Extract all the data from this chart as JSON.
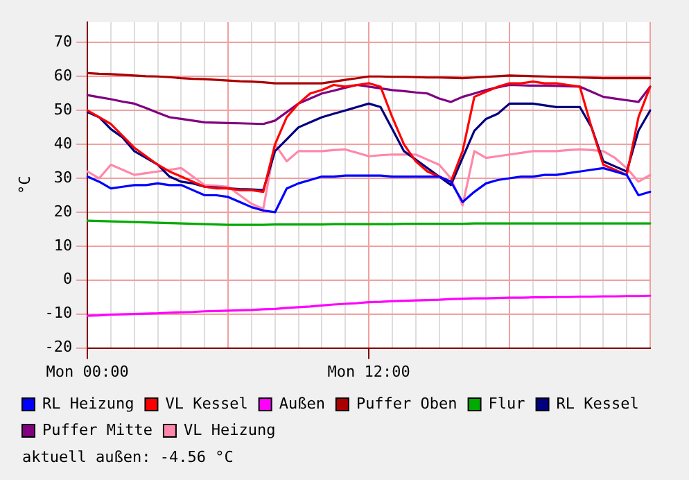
{
  "chart_data": {
    "type": "line",
    "ylabel": "°C",
    "annotations": [
      "aktuell außen: -4.56 °C"
    ],
    "categories": [
      "Mon 00:00",
      null,
      null,
      null,
      null,
      null,
      null,
      null,
      null,
      null,
      null,
      null,
      null,
      null,
      null,
      null,
      null,
      null,
      null,
      null,
      null,
      null,
      null,
      null,
      "Mon 12:00",
      null,
      null,
      null,
      null,
      null,
      null,
      null,
      null,
      null,
      null,
      null,
      null,
      null,
      null,
      null,
      null,
      null,
      null,
      null,
      null,
      null,
      null,
      null,
      null
    ],
    "ylim": [
      -20,
      76
    ],
    "yticks": [
      -20,
      -10,
      0,
      10,
      20,
      30,
      40,
      50,
      60,
      70
    ],
    "grid": true,
    "legend": "bottom",
    "marker": "none",
    "line_style": "solid",
    "series": [
      {
        "name": "RL Heizung",
        "color": "#0000ff",
        "values": [
          30.5,
          29,
          27,
          27.5,
          28,
          28,
          28.5,
          28,
          28,
          26.5,
          25,
          25,
          24.5,
          23,
          21.5,
          20.5,
          20,
          27,
          28.5,
          29.5,
          30.5,
          30.5,
          30.8,
          30.8,
          30.8,
          30.8,
          30.5,
          30.5,
          30.5,
          30.5,
          30.5,
          29,
          23,
          26,
          28.5,
          29.5,
          30,
          30.5,
          30.5,
          31,
          31,
          31.5,
          32,
          32.5,
          33,
          32,
          31,
          25,
          26
        ]
      },
      {
        "name": "VL Kessel",
        "color": "#ff0000",
        "values": [
          50,
          48,
          46,
          42.5,
          39,
          36.5,
          34,
          32,
          30.5,
          29,
          27.5,
          27,
          27,
          26.5,
          26.5,
          26,
          40,
          48,
          52,
          55,
          56,
          57.5,
          57,
          57.5,
          58,
          57,
          48,
          40,
          35,
          32,
          30.5,
          29,
          38,
          54,
          55.5,
          57,
          58,
          58,
          58.5,
          58,
          58,
          57.5,
          57,
          45,
          34,
          32.5,
          31,
          48,
          57
        ]
      },
      {
        "name": "Außen",
        "color": "#ff00ff",
        "values": [
          -10.5,
          -10.4,
          -10.2,
          -10.1,
          -10,
          -9.9,
          -9.8,
          -9.6,
          -9.5,
          -9.4,
          -9.2,
          -9.1,
          -9,
          -8.9,
          -8.8,
          -8.6,
          -8.5,
          -8.2,
          -8,
          -7.8,
          -7.5,
          -7.2,
          -7,
          -6.8,
          -6.5,
          -6.4,
          -6.2,
          -6.1,
          -6,
          -5.9,
          -5.8,
          -5.6,
          -5.5,
          -5.4,
          -5.4,
          -5.3,
          -5.2,
          -5.2,
          -5.1,
          -5.1,
          -5,
          -5,
          -4.9,
          -4.9,
          -4.8,
          -4.8,
          -4.7,
          -4.7,
          -4.6
        ]
      },
      {
        "name": "Puffer Oben",
        "color": "#aa0000",
        "values": [
          61,
          60.8,
          60.7,
          60.5,
          60.3,
          60.1,
          60,
          59.8,
          59.5,
          59.3,
          59.2,
          59,
          58.8,
          58.6,
          58.5,
          58.3,
          58,
          58,
          58,
          58,
          58,
          58.5,
          59,
          59.5,
          60,
          60,
          59.9,
          59.9,
          59.8,
          59.7,
          59.7,
          59.6,
          59.5,
          59.7,
          59.9,
          60.1,
          60.3,
          60.2,
          60.1,
          60,
          59.9,
          59.8,
          59.7,
          59.6,
          59.5,
          59.5,
          59.5,
          59.5,
          59.5
        ]
      },
      {
        "name": "Flur",
        "color": "#00aa00",
        "values": [
          17.5,
          17.4,
          17.3,
          17.2,
          17.1,
          17,
          16.9,
          16.8,
          16.7,
          16.6,
          16.5,
          16.4,
          16.3,
          16.3,
          16.3,
          16.3,
          16.4,
          16.4,
          16.4,
          16.4,
          16.4,
          16.5,
          16.5,
          16.5,
          16.5,
          16.5,
          16.5,
          16.6,
          16.6,
          16.6,
          16.6,
          16.6,
          16.6,
          16.7,
          16.7,
          16.7,
          16.7,
          16.7,
          16.7,
          16.7,
          16.7,
          16.7,
          16.7,
          16.7,
          16.7,
          16.7,
          16.7,
          16.7,
          16.7
        ]
      },
      {
        "name": "RL Kessel",
        "color": "#000080",
        "values": [
          49.5,
          48,
          44.5,
          42,
          38,
          36,
          34,
          30.5,
          29,
          28.5,
          27.5,
          27.3,
          27,
          26.8,
          26.7,
          26.5,
          38,
          41.5,
          45,
          46.5,
          48,
          49,
          50,
          51,
          52,
          51,
          44.5,
          38,
          35.5,
          33,
          30.5,
          28,
          36,
          44,
          47.5,
          49,
          52,
          52,
          52,
          51.5,
          51,
          51,
          51,
          45,
          35,
          33.5,
          32,
          44,
          50
        ]
      },
      {
        "name": "Puffer Mitte",
        "color": "#800080",
        "values": [
          54.5,
          53.9,
          53.3,
          52.6,
          52,
          50.7,
          49.3,
          48,
          47.5,
          47,
          46.5,
          46.4,
          46.3,
          46.2,
          46.1,
          46,
          47,
          49.5,
          52,
          53.5,
          55,
          55.8,
          56.7,
          57.5,
          57,
          56.5,
          56,
          55.7,
          55.3,
          55,
          53.5,
          52.5,
          54,
          55,
          56,
          56.8,
          57.5,
          57.4,
          57.3,
          57.3,
          57.2,
          57.1,
          57,
          55.5,
          54,
          53.5,
          53,
          52.5,
          57
        ]
      },
      {
        "name": "VL Heizung",
        "color": "#ff88aa",
        "values": [
          32,
          30,
          34,
          32.5,
          31,
          31.5,
          32,
          32.5,
          33,
          30.5,
          28,
          27.8,
          27.5,
          25,
          22.5,
          21,
          40,
          35,
          38,
          38,
          38,
          38.3,
          38.5,
          37.5,
          36.5,
          36.8,
          37,
          37,
          37,
          35.5,
          34,
          30,
          22,
          38,
          36,
          36.5,
          37,
          37.5,
          38,
          38,
          38,
          38.3,
          38.5,
          38.3,
          38,
          36,
          33,
          29,
          31
        ]
      }
    ]
  }
}
